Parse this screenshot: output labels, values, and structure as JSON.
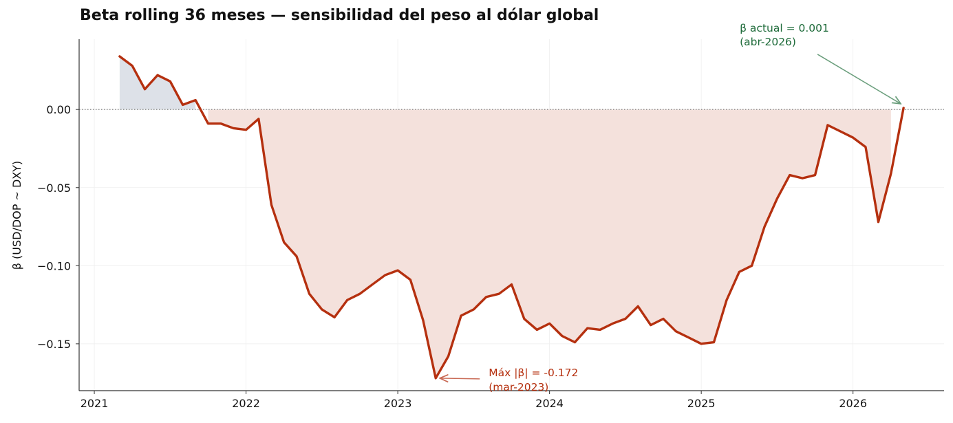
{
  "chart_data": {
    "type": "area",
    "title": "Beta rolling 36 meses — sensibilidad del peso al dólar global",
    "ylabel": "β  (USD/DOP ~ DXY)",
    "xlabel": "",
    "xlim": [
      2020.9,
      2026.6
    ],
    "ylim": [
      -0.18,
      0.045
    ],
    "grid": true,
    "x_ticks": [
      2021,
      2022,
      2023,
      2024,
      2025,
      2026
    ],
    "x_tick_labels": [
      "2021",
      "2022",
      "2023",
      "2024",
      "2025",
      "2026"
    ],
    "y_ticks": [
      0.0,
      -0.05,
      -0.1,
      -0.15
    ],
    "y_tick_labels": [
      "0.00",
      "−0.05",
      "−0.10",
      "−0.15"
    ],
    "zero_line": 0,
    "colors": {
      "line": "#b5300f",
      "fill_negative": "#f4e1dc",
      "fill_positive": "#dde1e8",
      "zero_line": "#888888",
      "max_annotation": "#b5300f",
      "current_annotation": "#1e6b3a"
    },
    "series": [
      {
        "x": [
          2021.167,
          2021.25,
          2021.333,
          2021.417,
          2021.5,
          2021.583,
          2021.667,
          2021.75,
          2021.833,
          2021.917,
          2022.0,
          2022.083,
          2022.167,
          2022.25,
          2022.333,
          2022.417,
          2022.5,
          2022.583,
          2022.667,
          2022.75,
          2022.833,
          2022.917,
          2023.0,
          2023.083,
          2023.167,
          2023.25,
          2023.333,
          2023.417,
          2023.5,
          2023.583,
          2023.667,
          2023.75,
          2023.833,
          2023.917,
          2024.0,
          2024.083,
          2024.167,
          2024.25,
          2024.333,
          2024.417,
          2024.5,
          2024.583,
          2024.667,
          2024.75,
          2024.833,
          2024.917,
          2025.0,
          2025.083,
          2025.167,
          2025.25,
          2025.333,
          2025.417,
          2025.5,
          2025.583,
          2025.667,
          2025.75,
          2025.833,
          2025.917,
          2026.0,
          2026.083,
          2026.167,
          2026.25,
          2026.333
        ],
        "values": [
          0.034,
          0.028,
          0.013,
          0.022,
          0.018,
          0.003,
          0.006,
          -0.009,
          -0.009,
          -0.012,
          -0.013,
          -0.006,
          -0.061,
          -0.085,
          -0.094,
          -0.118,
          -0.128,
          -0.133,
          -0.122,
          -0.118,
          -0.112,
          -0.106,
          -0.103,
          -0.109,
          -0.135,
          -0.172,
          -0.158,
          -0.132,
          -0.128,
          -0.12,
          -0.118,
          -0.112,
          -0.134,
          -0.141,
          -0.137,
          -0.145,
          -0.149,
          -0.14,
          -0.141,
          -0.137,
          -0.134,
          -0.126,
          -0.138,
          -0.134,
          -0.142,
          -0.146,
          -0.15,
          -0.149,
          -0.122,
          -0.104,
          -0.1,
          -0.075,
          -0.057,
          -0.042,
          -0.044,
          -0.042,
          -0.01,
          -0.014,
          -0.018,
          -0.024,
          -0.072,
          -0.041,
          0.001
        ]
      }
    ],
    "annotations": [
      {
        "text_line1": "Máx |β| = -0.172",
        "text_line2": "(mar-2023)",
        "x": 2023.25,
        "y": -0.172
      },
      {
        "text_line1": "β actual = 0.001",
        "text_line2": "(abr-2026)",
        "x": 2026.333,
        "y": 0.001
      }
    ]
  }
}
